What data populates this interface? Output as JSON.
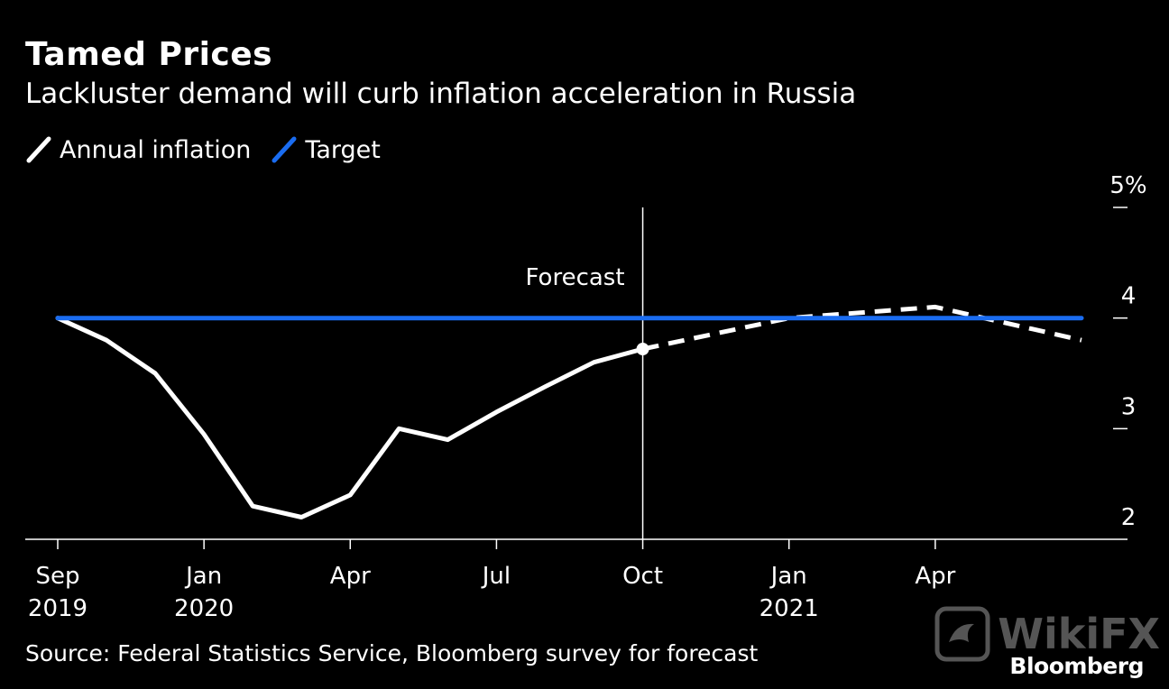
{
  "chart_data": {
    "type": "line",
    "title": "Tamed Prices",
    "subtitle": "Lackluster demand will curb inflation acceleration in Russia",
    "x": [
      0,
      1,
      2,
      3,
      4,
      5,
      6,
      7,
      8,
      9,
      10,
      11,
      12,
      13,
      14,
      15,
      16,
      17,
      18,
      19,
      20,
      21
    ],
    "xlim": [
      0,
      21
    ],
    "ylim": [
      2,
      5
    ],
    "series": [
      {
        "name": "Annual inflation",
        "color": "#ffffff",
        "style": "solid",
        "x": [
          0,
          1,
          2,
          3,
          4,
          5,
          6,
          7,
          8,
          9,
          10,
          11,
          12
        ],
        "values": [
          4.0,
          3.8,
          3.5,
          2.95,
          2.3,
          2.2,
          2.4,
          3.0,
          2.9,
          3.15,
          3.38,
          3.6,
          3.72
        ]
      },
      {
        "name": "Annual inflation (forecast)",
        "color": "#ffffff",
        "style": "dashed",
        "x": [
          12,
          15,
          18,
          21
        ],
        "values": [
          3.72,
          4.0,
          4.1,
          3.8
        ]
      },
      {
        "name": "Target",
        "color": "#1a6cf0",
        "style": "solid",
        "x": [
          0,
          21
        ],
        "values": [
          4.0,
          4.0
        ]
      }
    ],
    "forecast_marker": {
      "x": 12,
      "label": "Forecast"
    },
    "y_ticks": [
      {
        "value": 5,
        "label": "5%"
      },
      {
        "value": 4,
        "label": "4"
      },
      {
        "value": 3,
        "label": "3"
      },
      {
        "value": 2,
        "label": "2"
      }
    ],
    "x_ticks": [
      {
        "x": 0,
        "line1": "Sep",
        "line2": "2019"
      },
      {
        "x": 3,
        "line1": "Jan",
        "line2": "2020"
      },
      {
        "x": 6,
        "line1": "Apr",
        "line2": ""
      },
      {
        "x": 9,
        "line1": "Jul",
        "line2": ""
      },
      {
        "x": 12,
        "line1": "Oct",
        "line2": ""
      },
      {
        "x": 15,
        "line1": "Jan",
        "line2": "2021"
      },
      {
        "x": 18,
        "line1": "Apr",
        "line2": ""
      }
    ],
    "legend": [
      {
        "label": "Annual inflation",
        "color": "#ffffff"
      },
      {
        "label": "Target",
        "color": "#1a6cf0"
      }
    ]
  },
  "footer": {
    "source": "Source: Federal Statistics Service, Bloomberg survey for forecast",
    "brand": "Bloomberg",
    "watermark": "WikiFX"
  }
}
